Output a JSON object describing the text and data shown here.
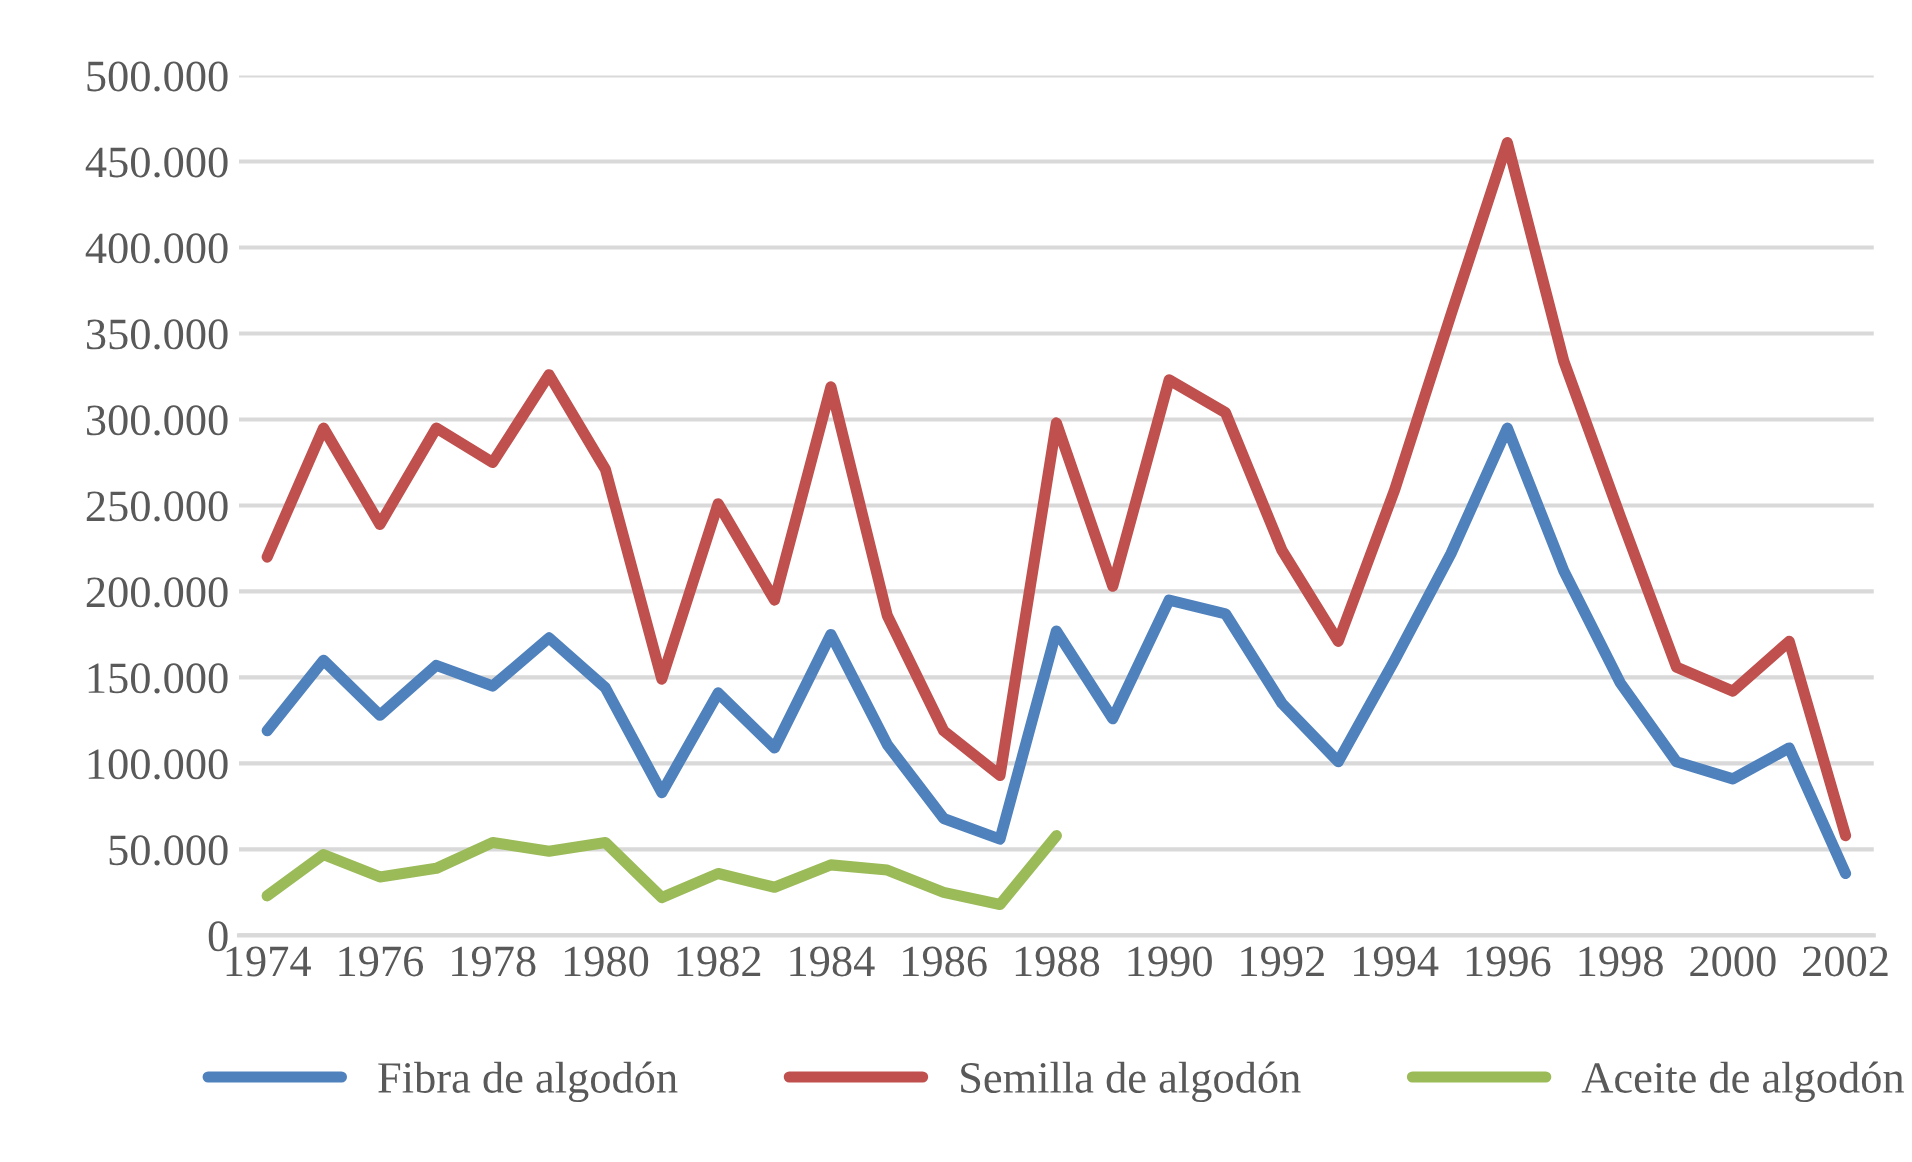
{
  "chart_data": {
    "type": "line",
    "categories": [
      "1974",
      null,
      "1976",
      null,
      "1978",
      null,
      "1980",
      null,
      "1982",
      null,
      "1984",
      null,
      "1986",
      null,
      "1988",
      null,
      "1990",
      null,
      "1992",
      null,
      "1994",
      null,
      "1996",
      null,
      "1998",
      null,
      "2000",
      null,
      "2002"
    ],
    "series": [
      {
        "name": "Fibra de algodón",
        "color": "#4f81bd",
        "values": [
          119000,
          160000,
          128000,
          157000,
          145000,
          173000,
          144000,
          83000,
          141000,
          109000,
          175000,
          111000,
          68000,
          56000,
          177000,
          126000,
          195000,
          187000,
          135000,
          101000,
          160000,
          222000,
          295000,
          212000,
          147000,
          101000,
          91000,
          109000,
          36000
        ]
      },
      {
        "name": "Semilla de algodón",
        "color": "#c0504d",
        "values": [
          220000,
          295000,
          239000,
          295000,
          275000,
          326000,
          271000,
          149000,
          251000,
          195000,
          319000,
          186000,
          119000,
          93000,
          298000,
          203000,
          323000,
          304000,
          224000,
          171000,
          259000,
          361000,
          461000,
          334000,
          244000,
          156000,
          142000,
          171000,
          58000
        ]
      },
      {
        "name": "Aceite de algodón",
        "color": "#9bbb59",
        "values": [
          23000,
          47000,
          34000,
          39000,
          54000,
          49000,
          54000,
          22000,
          36000,
          28000,
          41000,
          38000,
          25000,
          18000,
          58000,
          null,
          null,
          null,
          null,
          null,
          null,
          null,
          null,
          null,
          null,
          null,
          null,
          null,
          null
        ]
      }
    ],
    "ylim": [
      0,
      500000
    ],
    "yticks": [
      {
        "value": 0,
        "label": "0"
      },
      {
        "value": 50000,
        "label": "50.000"
      },
      {
        "value": 100000,
        "label": "100.000"
      },
      {
        "value": 150000,
        "label": "150.000"
      },
      {
        "value": 200000,
        "label": "200.000"
      },
      {
        "value": 250000,
        "label": "250.000"
      },
      {
        "value": 300000,
        "label": "300.000"
      },
      {
        "value": 350000,
        "label": "350.000"
      },
      {
        "value": 400000,
        "label": "400.000"
      },
      {
        "value": 450000,
        "label": "450.000"
      },
      {
        "value": 500000,
        "label": "500.000"
      }
    ],
    "grid": "y",
    "legend": "bottom",
    "marker": "none",
    "line_style": "solid"
  }
}
